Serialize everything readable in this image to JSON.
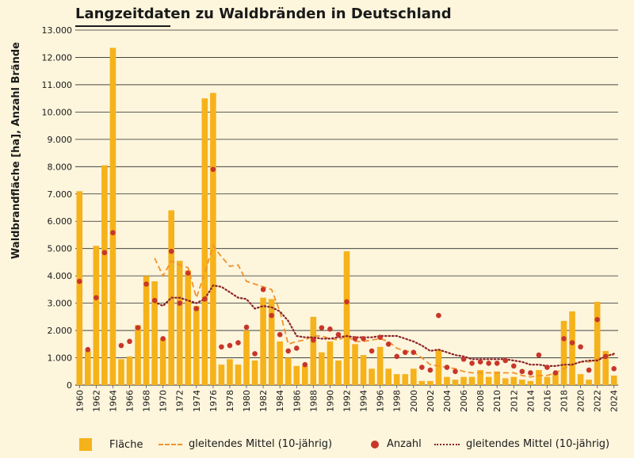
{
  "title": "Langzeitdaten zu Waldbränden in Deutschland",
  "chart_data": {
    "type": "bar",
    "title": "Langzeitdaten zu Waldbränden in Deutschland",
    "xlabel": "",
    "ylabel": "Waldbrandfläche [ha], Anzahl Brände",
    "ylim": [
      0,
      13000
    ],
    "yticks": [
      "0",
      "1.000",
      "2.000",
      "3.000",
      "4.000",
      "5.000",
      "6.000",
      "7.000",
      "8.000",
      "9.000",
      "10.000",
      "11.000",
      "12.000",
      "13.000"
    ],
    "grid": true,
    "legend_position": "bottom",
    "years": [
      1960,
      1961,
      1962,
      1963,
      1964,
      1965,
      1966,
      1967,
      1968,
      1969,
      1970,
      1971,
      1972,
      1973,
      1974,
      1975,
      1976,
      1977,
      1978,
      1979,
      1980,
      1981,
      1982,
      1983,
      1984,
      1985,
      1986,
      1987,
      1988,
      1989,
      1990,
      1991,
      1992,
      1993,
      1994,
      1995,
      1996,
      1997,
      1998,
      1999,
      2000,
      2001,
      2002,
      2003,
      2004,
      2005,
      2006,
      2007,
      2008,
      2009,
      2010,
      2011,
      2012,
      2013,
      2014,
      2015,
      2016,
      2017,
      2018,
      2019,
      2020,
      2021,
      2022,
      2023,
      2024
    ],
    "xtick_labels": [
      "1960",
      "1962",
      "1964",
      "1966",
      "1968",
      "1970",
      "1972",
      "1974",
      "1976",
      "1978",
      "1980",
      "1982",
      "1984",
      "1986",
      "1988",
      "1990",
      "1992",
      "1994",
      "1996",
      "1998",
      "2000",
      "2002",
      "2004",
      "2006",
      "2008",
      "2010",
      "2012",
      "2014",
      "2016",
      "2018",
      "2020",
      "2022",
      "2024"
    ],
    "series": [
      {
        "name": "Fläche",
        "type": "bar",
        "color": "#F5B21A",
        "values": [
          7100,
          1250,
          5100,
          8050,
          12350,
          950,
          1050,
          2200,
          4000,
          3800,
          1700,
          6400,
          4550,
          4200,
          2900,
          10500,
          10700,
          750,
          950,
          750,
          2000,
          900,
          3200,
          3150,
          1600,
          1000,
          700,
          700,
          2500,
          1200,
          1600,
          900,
          4900,
          1500,
          1100,
          600,
          1400,
          600,
          400,
          400,
          600,
          150,
          150,
          1300,
          300,
          200,
          300,
          300,
          550,
          300,
          500,
          250,
          300,
          200,
          150,
          550,
          300,
          450,
          2350,
          2700,
          400,
          200,
          3050,
          1250,
          350
        ]
      },
      {
        "name": "gleitendes Mittel (10-jährig)",
        "type": "line-dashed",
        "color": "#F0922E",
        "values": [
          null,
          null,
          null,
          null,
          null,
          null,
          null,
          null,
          null,
          4650,
          4000,
          4550,
          4400,
          4300,
          3200,
          4100,
          5100,
          4700,
          4350,
          4400,
          3800,
          3700,
          3600,
          3500,
          2700,
          1500,
          1600,
          1650,
          1800,
          1800,
          1700,
          1650,
          1800,
          1600,
          1600,
          1650,
          1700,
          1600,
          1350,
          1250,
          1200,
          1000,
          750,
          700,
          650,
          600,
          500,
          450,
          450,
          450,
          450,
          450,
          450,
          350,
          300,
          350,
          350,
          450,
          600,
          750,
          850,
          850,
          950,
          1100,
          1100
        ]
      },
      {
        "name": "Anzahl",
        "type": "scatter",
        "color": "#C8362A",
        "values": [
          3800,
          1300,
          3200,
          4850,
          5580,
          1450,
          1600,
          2100,
          3700,
          3100,
          1700,
          4900,
          3000,
          4100,
          2800,
          3150,
          7900,
          1400,
          1450,
          1550,
          2120,
          1150,
          3500,
          2550,
          1850,
          1250,
          1350,
          750,
          1650,
          2100,
          2050,
          1850,
          3050,
          1700,
          1700,
          1250,
          1750,
          1500,
          1050,
          1200,
          1200,
          650,
          550,
          2550,
          650,
          500,
          950,
          800,
          850,
          800,
          800,
          900,
          700,
          500,
          450,
          1100,
          650,
          450,
          1700,
          1550,
          1400,
          550,
          2400,
          1050,
          600
        ]
      },
      {
        "name": "gleitendes Mittel (10-jährig)",
        "type": "line-dotted",
        "color": "#8B2328",
        "values": [
          null,
          null,
          null,
          null,
          null,
          null,
          null,
          null,
          null,
          3050,
          2900,
          3200,
          3200,
          3100,
          3000,
          3150,
          3650,
          3600,
          3400,
          3200,
          3150,
          2800,
          2900,
          2850,
          2700,
          2350,
          1800,
          1750,
          1750,
          1700,
          1700,
          1750,
          1800,
          1750,
          1750,
          1750,
          1800,
          1800,
          1800,
          1700,
          1600,
          1450,
          1250,
          1300,
          1200,
          1100,
          1050,
          950,
          950,
          950,
          950,
          950,
          900,
          850,
          750,
          750,
          700,
          700,
          750,
          750,
          850,
          900,
          900,
          1050,
          1150
        ]
      }
    ]
  },
  "legend": {
    "area": "Fläche",
    "area_mean": "gleitendes Mittel (10-jährig)",
    "count": "Anzahl",
    "count_mean": "gleitendes Mittel (10-jährig)"
  }
}
